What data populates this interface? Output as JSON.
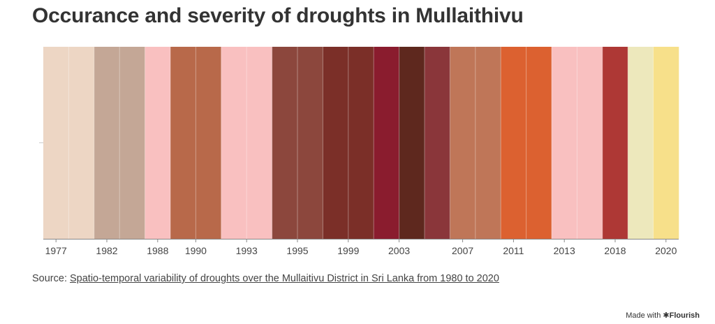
{
  "title": "Occurance and severity of droughts in Mullaithivu",
  "chart_data": {
    "type": "heatmap",
    "title": "Occurance and severity of droughts in Mullaithivu",
    "xlabel": "",
    "ylabel": "",
    "grid": false,
    "legend": "none",
    "cells": [
      {
        "color": "#edd6c4"
      },
      {
        "color": "#edd6c4"
      },
      {
        "color": "#c4a796"
      },
      {
        "color": "#c4a796"
      },
      {
        "color": "#f9c0c0"
      },
      {
        "color": "#b8694a"
      },
      {
        "color": "#b8694a"
      },
      {
        "color": "#f9c0c0"
      },
      {
        "color": "#f9c0c0"
      },
      {
        "color": "#8c473d"
      },
      {
        "color": "#8c473d"
      },
      {
        "color": "#7b2f28"
      },
      {
        "color": "#7b2f28"
      },
      {
        "color": "#8a1c2e"
      },
      {
        "color": "#5e281e"
      },
      {
        "color": "#8a363a"
      },
      {
        "color": "#bf7658"
      },
      {
        "color": "#bf7658"
      },
      {
        "color": "#dc6130"
      },
      {
        "color": "#dc6130"
      },
      {
        "color": "#f9c0c0"
      },
      {
        "color": "#f9c0c0"
      },
      {
        "color": "#ae3835"
      },
      {
        "color": "#ede8bc"
      },
      {
        "color": "#f7e08a"
      }
    ],
    "tick_labels": [
      "1977",
      "1982",
      "1988",
      "1990",
      "1993",
      "1995",
      "1999",
      "2003",
      "2007",
      "2011",
      "2013",
      "2018",
      "2020"
    ],
    "tick_positions": [
      0.5,
      2.5,
      4.5,
      6,
      8,
      10,
      12,
      14,
      16.5,
      18.5,
      20.5,
      22.5,
      24.5
    ]
  },
  "source": {
    "label": "Source: ",
    "link_text": "Spatio-temporal variability of droughts over the Mullaitivu District in Sri Lanka from 1980 to 2020"
  },
  "credit": {
    "prefix": "Made with ",
    "brand": "✱Flourish"
  }
}
